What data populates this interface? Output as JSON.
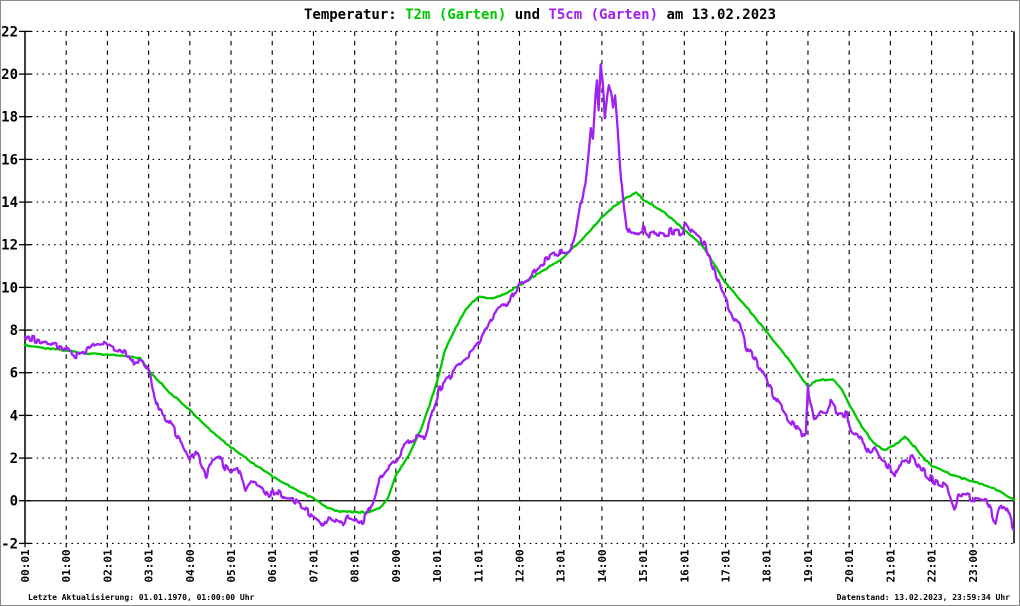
{
  "title": {
    "prefix": "Temperatur: ",
    "series1_label": "T2m (Garten)",
    "conjunction": " und ",
    "series2_label": "T5cm (Garten)",
    "suffix": " am 13.02.2023"
  },
  "footer": {
    "left": "Letzte Aktualisierung: 01.01.1970, 01:00:00 Uhr",
    "right": "Datenstand: 13.02.2023, 23:59:34 Uhr"
  },
  "colors": {
    "t2m": "#00C800",
    "t5cm": "#A020F0",
    "grid": "#000000",
    "frame": "#8C8C8C",
    "background": "#FFFFFF"
  },
  "chart_data": {
    "type": "line",
    "title": "Temperatur: T2m (Garten) und T5cm (Garten) am 13.02.2023",
    "grid": true,
    "legend_position": "in-title",
    "x_range": [
      0,
      24
    ],
    "y_range": [
      -2,
      22
    ],
    "y_tick_step": 2,
    "y_tick_labels": [
      "-2",
      "0",
      "2",
      "4",
      "6",
      "8",
      "10",
      "12",
      "14",
      "16",
      "18",
      "20",
      "22"
    ],
    "x_tick_labels": [
      "00:01",
      "01:00",
      "02:01",
      "03:01",
      "04:00",
      "05:01",
      "06:01",
      "07:01",
      "08:01",
      "09:00",
      "10:01",
      "11:01",
      "12:00",
      "13:01",
      "14:00",
      "15:01",
      "16:01",
      "17:01",
      "18:01",
      "19:01",
      "20:01",
      "21:01",
      "22:01",
      "23:00"
    ],
    "series": [
      {
        "name": "T2m (Garten)",
        "color": "#00C800",
        "jitter": 0.03,
        "seed": 7,
        "points": [
          [
            0,
            7.3
          ],
          [
            0.5,
            7.15
          ],
          [
            1,
            7.05
          ],
          [
            1.5,
            6.9
          ],
          [
            2,
            6.85
          ],
          [
            2.5,
            6.75
          ],
          [
            2.8,
            6.68
          ],
          [
            3,
            6.1
          ],
          [
            3.5,
            5.1
          ],
          [
            4,
            4.25
          ],
          [
            4.5,
            3.3
          ],
          [
            5,
            2.5
          ],
          [
            5.5,
            1.8
          ],
          [
            6,
            1.15
          ],
          [
            6.5,
            0.6
          ],
          [
            7,
            0.1
          ],
          [
            7.3,
            -0.3
          ],
          [
            7.6,
            -0.5
          ],
          [
            8.3,
            -0.55
          ],
          [
            8.6,
            -0.35
          ],
          [
            8.8,
            0.1
          ],
          [
            9,
            1.2
          ],
          [
            9.3,
            2.1
          ],
          [
            9.6,
            3.3
          ],
          [
            9.8,
            4.4
          ],
          [
            10,
            5.6
          ],
          [
            10.2,
            7.1
          ],
          [
            10.45,
            8.1
          ],
          [
            10.7,
            9
          ],
          [
            11,
            9.55
          ],
          [
            11.35,
            9.5
          ],
          [
            11.6,
            9.65
          ],
          [
            12,
            10.1
          ],
          [
            12.5,
            10.7
          ],
          [
            13,
            11.3
          ],
          [
            13.5,
            12.2
          ],
          [
            14,
            13.3
          ],
          [
            14.3,
            13.8
          ],
          [
            14.6,
            14.2
          ],
          [
            14.85,
            14.45
          ],
          [
            15,
            14.1
          ],
          [
            15.5,
            13.55
          ],
          [
            16,
            12.7
          ],
          [
            16.3,
            12.2
          ],
          [
            16.5,
            11.8
          ],
          [
            17,
            10.2
          ],
          [
            17.5,
            9.1
          ],
          [
            18,
            7.9
          ],
          [
            18.5,
            6.7
          ],
          [
            19,
            5.35
          ],
          [
            19.2,
            5.65
          ],
          [
            19.6,
            5.7
          ],
          [
            19.8,
            5.3
          ],
          [
            20,
            4.5
          ],
          [
            20.3,
            3.5
          ],
          [
            20.6,
            2.7
          ],
          [
            20.85,
            2.35
          ],
          [
            21.1,
            2.6
          ],
          [
            21.35,
            3
          ],
          [
            21.6,
            2.5
          ],
          [
            21.8,
            2
          ],
          [
            22,
            1.65
          ],
          [
            22.5,
            1.2
          ],
          [
            23,
            0.9
          ],
          [
            23.5,
            0.6
          ],
          [
            24,
            0.05
          ]
        ]
      },
      {
        "name": "T5cm (Garten)",
        "color": "#A020F0",
        "jitter": 0.16,
        "seed": 13,
        "points": [
          [
            0,
            7.65
          ],
          [
            0.3,
            7.55
          ],
          [
            0.6,
            7.4
          ],
          [
            0.9,
            7.2
          ],
          [
            1.1,
            6.95
          ],
          [
            1.3,
            6.75
          ],
          [
            1.5,
            7
          ],
          [
            1.7,
            7.3
          ],
          [
            1.9,
            7.35
          ],
          [
            2.1,
            7.1
          ],
          [
            2.3,
            7
          ],
          [
            2.5,
            6.85
          ],
          [
            2.6,
            6.45
          ],
          [
            2.7,
            6.65
          ],
          [
            2.85,
            6.55
          ],
          [
            3,
            6.1
          ],
          [
            3.1,
            5.3
          ],
          [
            3.25,
            4.2
          ],
          [
            3.4,
            3.9
          ],
          [
            3.5,
            3.7
          ],
          [
            3.65,
            3.2
          ],
          [
            3.8,
            2.8
          ],
          [
            4,
            1.95
          ],
          [
            4.15,
            2.3
          ],
          [
            4.3,
            1.6
          ],
          [
            4.4,
            1.2
          ],
          [
            4.55,
            1.9
          ],
          [
            4.7,
            2.1
          ],
          [
            4.85,
            1.55
          ],
          [
            5,
            1.35
          ],
          [
            5.15,
            1.6
          ],
          [
            5.35,
            0.45
          ],
          [
            5.5,
            1
          ],
          [
            5.7,
            0.8
          ],
          [
            5.9,
            0.25
          ],
          [
            6.1,
            0.5
          ],
          [
            6.3,
            0.1
          ],
          [
            6.5,
            0.05
          ],
          [
            6.7,
            -0.3
          ],
          [
            6.9,
            -0.55
          ],
          [
            7.1,
            -1
          ],
          [
            7.2,
            -1.3
          ],
          [
            7.35,
            -0.75
          ],
          [
            7.55,
            -0.9
          ],
          [
            7.7,
            -1.15
          ],
          [
            7.85,
            -0.7
          ],
          [
            8,
            -0.85
          ],
          [
            8.15,
            -1.05
          ],
          [
            8.3,
            -0.7
          ],
          [
            8.45,
            0
          ],
          [
            8.6,
            0.9
          ],
          [
            8.8,
            1.45
          ],
          [
            9,
            1.8
          ],
          [
            9.2,
            2.5
          ],
          [
            9.4,
            2.9
          ],
          [
            9.7,
            3.05
          ],
          [
            9.85,
            4
          ],
          [
            10.05,
            5.2
          ],
          [
            10.3,
            5.8
          ],
          [
            10.5,
            6.35
          ],
          [
            10.75,
            6.8
          ],
          [
            11,
            7.3
          ],
          [
            11.3,
            8.5
          ],
          [
            11.5,
            9
          ],
          [
            11.75,
            9.3
          ],
          [
            12,
            10.2
          ],
          [
            12.2,
            10.35
          ],
          [
            12.4,
            10.9
          ],
          [
            12.6,
            11.2
          ],
          [
            12.8,
            11.45
          ],
          [
            13,
            11.6
          ],
          [
            13.2,
            11.7
          ],
          [
            13.35,
            12.4
          ],
          [
            13.5,
            14.1
          ],
          [
            13.6,
            14.9
          ],
          [
            13.68,
            16.3
          ],
          [
            13.73,
            17.4
          ],
          [
            13.78,
            16.9
          ],
          [
            13.83,
            18.6
          ],
          [
            13.88,
            19.6
          ],
          [
            13.92,
            18.4
          ],
          [
            13.97,
            20.5
          ],
          [
            14.02,
            19.6
          ],
          [
            14.07,
            18
          ],
          [
            14.12,
            18.9
          ],
          [
            14.17,
            19.5
          ],
          [
            14.22,
            19.2
          ],
          [
            14.27,
            18.3
          ],
          [
            14.32,
            19
          ],
          [
            14.38,
            17.5
          ],
          [
            14.45,
            15.5
          ],
          [
            14.52,
            14
          ],
          [
            14.6,
            12.9
          ],
          [
            14.7,
            12.5
          ],
          [
            14.85,
            12.55
          ],
          [
            15,
            12.8
          ],
          [
            15.15,
            12.45
          ],
          [
            15.3,
            12.6
          ],
          [
            15.5,
            12.5
          ],
          [
            15.7,
            12.65
          ],
          [
            15.9,
            12.55
          ],
          [
            16.05,
            12.9
          ],
          [
            16.2,
            12.5
          ],
          [
            16.35,
            12.3
          ],
          [
            16.5,
            12
          ],
          [
            16.75,
            10.7
          ],
          [
            17,
            9.4
          ],
          [
            17.2,
            8.5
          ],
          [
            17.35,
            8.3
          ],
          [
            17.5,
            7.2
          ],
          [
            17.7,
            6.7
          ],
          [
            17.9,
            6
          ],
          [
            18.1,
            5.2
          ],
          [
            18.3,
            4.5
          ],
          [
            18.5,
            3.9
          ],
          [
            18.7,
            3.5
          ],
          [
            18.85,
            3.05
          ],
          [
            18.95,
            3.3
          ],
          [
            19,
            5.3
          ],
          [
            19.07,
            4.5
          ],
          [
            19.15,
            3.85
          ],
          [
            19.3,
            4.3
          ],
          [
            19.45,
            4.25
          ],
          [
            19.55,
            4.6
          ],
          [
            19.7,
            4.2
          ],
          [
            19.85,
            4.1
          ],
          [
            19.95,
            4
          ],
          [
            20.05,
            3.3
          ],
          [
            20.2,
            3.15
          ],
          [
            20.35,
            2.75
          ],
          [
            20.5,
            2.2
          ],
          [
            20.62,
            2.4
          ],
          [
            20.75,
            2
          ],
          [
            20.9,
            1.7
          ],
          [
            21.05,
            1.4
          ],
          [
            21.15,
            1.2
          ],
          [
            21.3,
            2
          ],
          [
            21.45,
            1.9
          ],
          [
            21.55,
            2
          ],
          [
            21.7,
            1.5
          ],
          [
            21.85,
            1.3
          ],
          [
            22,
            1
          ],
          [
            22.2,
            0.8
          ],
          [
            22.4,
            0.55
          ],
          [
            22.55,
            -0.35
          ],
          [
            22.65,
            0.3
          ],
          [
            22.85,
            0.25
          ],
          [
            23,
            0.1
          ],
          [
            23.2,
            0
          ],
          [
            23.35,
            -0.1
          ],
          [
            23.45,
            -0.5
          ],
          [
            23.55,
            -1.05
          ],
          [
            23.65,
            -0.3
          ],
          [
            23.75,
            -0.15
          ],
          [
            23.85,
            -0.45
          ],
          [
            23.98,
            -1.35
          ]
        ]
      }
    ]
  }
}
